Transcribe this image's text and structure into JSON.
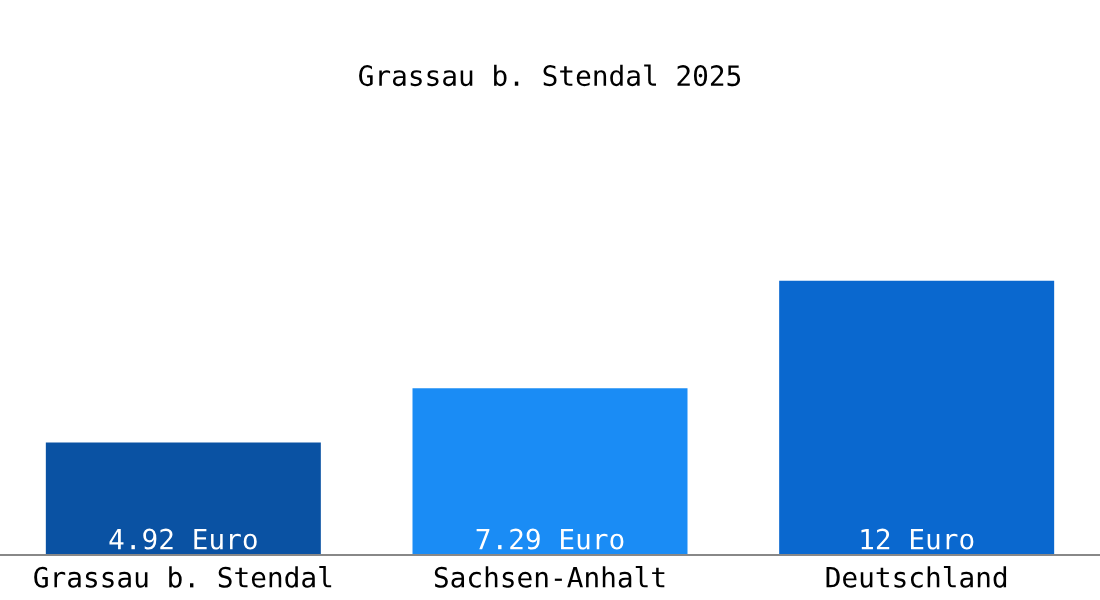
{
  "chart_data": {
    "type": "bar",
    "title": "Grassau b. Stendal 2025",
    "categories": [
      "Grassau b. Stendal",
      "Sachsen-Anhalt",
      "Deutschland"
    ],
    "values": [
      4.92,
      7.29,
      12
    ],
    "value_labels": [
      "4.92 Euro",
      "7.29 Euro",
      "12 Euro"
    ],
    "colors": [
      "#0a52a3",
      "#1a8cf5",
      "#0a68cf"
    ],
    "grid": false,
    "legend": false
  }
}
